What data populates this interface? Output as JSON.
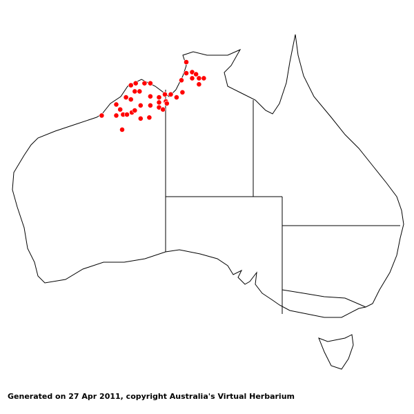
{
  "caption": "Generated on 27 Apr 2011, copyright Australia's Virtual Herbarium",
  "map": {
    "region": "Australia",
    "dot_color": "#ff0000",
    "outline_color": "#000000",
    "occurrences": [
      {
        "lon": 131.3,
        "lat": -13.1
      },
      {
        "lon": 131.3,
        "lat": -14.2
      },
      {
        "lon": 131.9,
        "lat": -14.1
      },
      {
        "lon": 132.3,
        "lat": -14.3
      },
      {
        "lon": 132.6,
        "lat": -14.7
      },
      {
        "lon": 133.1,
        "lat": -14.7
      },
      {
        "lon": 132.6,
        "lat": -15.3
      },
      {
        "lon": 130.8,
        "lat": -14.9
      },
      {
        "lon": 131.9,
        "lat": -14.7
      },
      {
        "lon": 130.9,
        "lat": -16.1
      },
      {
        "lon": 125.6,
        "lat": -15.4
      },
      {
        "lon": 126.1,
        "lat": -15.2
      },
      {
        "lon": 127.0,
        "lat": -15.2
      },
      {
        "lon": 127.6,
        "lat": -15.2
      },
      {
        "lon": 126.0,
        "lat": -16.0
      },
      {
        "lon": 126.5,
        "lat": -16.0
      },
      {
        "lon": 125.1,
        "lat": -16.6
      },
      {
        "lon": 125.6,
        "lat": -16.8
      },
      {
        "lon": 127.6,
        "lat": -16.5
      },
      {
        "lon": 128.5,
        "lat": -16.6
      },
      {
        "lon": 129.1,
        "lat": -16.3
      },
      {
        "lon": 129.7,
        "lat": -16.3
      },
      {
        "lon": 130.3,
        "lat": -16.6
      },
      {
        "lon": 129.2,
        "lat": -17.0
      },
      {
        "lon": 128.5,
        "lat": -17.1
      },
      {
        "lon": 124.1,
        "lat": -17.3
      },
      {
        "lon": 124.5,
        "lat": -17.8
      },
      {
        "lon": 126.6,
        "lat": -17.4
      },
      {
        "lon": 127.6,
        "lat": -17.4
      },
      {
        "lon": 128.5,
        "lat": -17.6
      },
      {
        "lon": 128.9,
        "lat": -17.8
      },
      {
        "lon": 129.3,
        "lat": -17.2
      },
      {
        "lon": 122.6,
        "lat": -18.4
      },
      {
        "lon": 124.1,
        "lat": -18.4
      },
      {
        "lon": 124.8,
        "lat": -18.3
      },
      {
        "lon": 125.2,
        "lat": -18.3
      },
      {
        "lon": 125.7,
        "lat": -18.1
      },
      {
        "lon": 126.0,
        "lat": -17.9
      },
      {
        "lon": 126.6,
        "lat": -18.7
      },
      {
        "lon": 127.5,
        "lat": -18.6
      },
      {
        "lon": 124.7,
        "lat": -19.8
      }
    ]
  }
}
